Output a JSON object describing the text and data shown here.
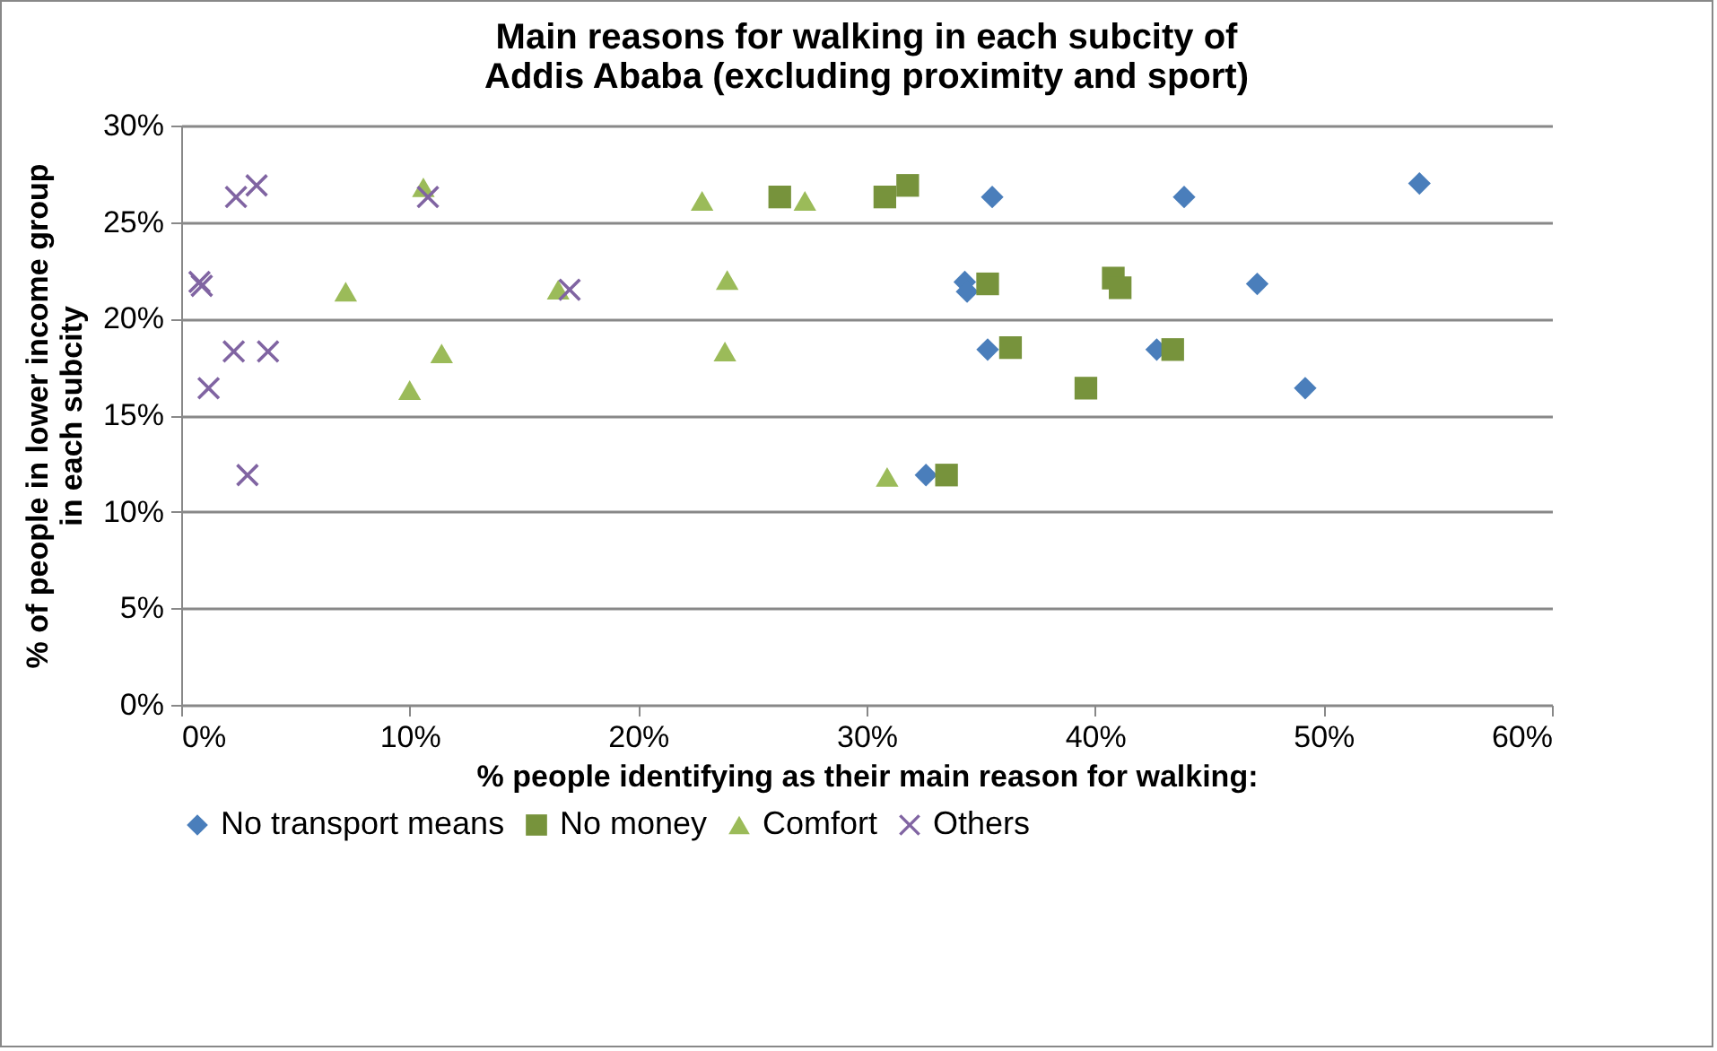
{
  "chart_data": {
    "type": "scatter",
    "title": "Main reasons for walking in each subcity of Addis Ababa (excluding proximity and sport)",
    "xlabel": "% people identifying as their main reason for walking:",
    "ylabel": "% of people in lower income group in each subcity",
    "xlim": [
      0,
      60
    ],
    "xticks": [
      {
        "value": 0,
        "label": "0%"
      },
      {
        "value": 10,
        "label": "10%"
      },
      {
        "value": 20,
        "label": "20%"
      },
      {
        "value": 30,
        "label": "30%"
      },
      {
        "value": 40,
        "label": "40%"
      },
      {
        "value": 50,
        "label": "50%"
      },
      {
        "value": 60,
        "label": "60%"
      }
    ],
    "ylim": [
      0,
      30
    ],
    "yticks": [
      {
        "value": 0,
        "label": "0%"
      },
      {
        "value": 5,
        "label": "5%"
      },
      {
        "value": 10,
        "label": "10%"
      },
      {
        "value": 15,
        "label": "15%"
      },
      {
        "value": 20,
        "label": "20%"
      },
      {
        "value": 25,
        "label": "25%"
      },
      {
        "value": 30,
        "label": "30%"
      }
    ],
    "grid": "y",
    "legend": "bottom",
    "series": [
      {
        "name": "No transport means",
        "color": "#4a7ebb",
        "marker": "diamond",
        "x": [
          35.5,
          43.9,
          54.2,
          34.3,
          34.4,
          47.1,
          35.3,
          42.7,
          49.2,
          32.6
        ],
        "values": [
          26.3,
          26.3,
          27.0,
          21.9,
          21.4,
          21.8,
          18.4,
          18.4,
          16.4,
          11.9
        ]
      },
      {
        "name": "No money",
        "color": "#77933c",
        "marker": "square",
        "x": [
          26.2,
          30.8,
          31.8,
          35.3,
          36.3,
          39.6,
          33.5,
          40.8,
          41.1,
          43.4
        ],
        "values": [
          26.3,
          26.3,
          26.9,
          21.8,
          18.5,
          16.4,
          11.9,
          22.1,
          21.6,
          18.4
        ]
      },
      {
        "name": "Comfort",
        "color": "#9bbb59",
        "marker": "triangle",
        "x": [
          10.6,
          7.2,
          16.5,
          11.4,
          10.0,
          22.8,
          27.3,
          23.9,
          23.8,
          30.9
        ],
        "values": [
          26.8,
          21.4,
          21.5,
          18.2,
          16.3,
          26.1,
          26.1,
          22.0,
          18.3,
          11.8
        ]
      },
      {
        "name": "Others",
        "color": "#8064a2",
        "marker": "cross",
        "x": [
          2.4,
          3.3,
          10.8,
          0.8,
          0.9,
          17.0,
          2.3,
          3.8,
          1.2,
          2.9
        ],
        "values": [
          26.3,
          26.9,
          26.3,
          21.9,
          21.7,
          21.5,
          18.3,
          18.3,
          16.4,
          11.9
        ]
      }
    ]
  }
}
